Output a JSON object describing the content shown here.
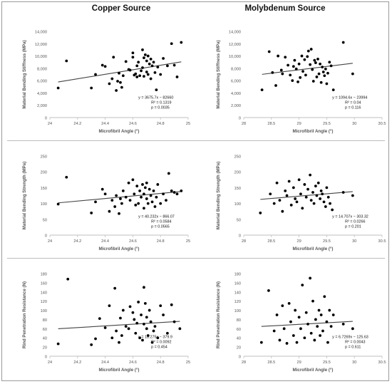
{
  "headers": {
    "left": "Copper Source",
    "right": "Molybdenum Source"
  },
  "colors": {
    "points": "#000000",
    "trendline": "#444444",
    "axis": "#bfbfbf",
    "text": "#555555",
    "title": "#111111"
  },
  "chart_data": [
    {
      "type": "scatter",
      "xlabel": "Microfibril Angle (°)",
      "ylabel": "Material Bending Stiffness (MPa)",
      "xlim": [
        24,
        25
      ],
      "ylim": [
        0,
        14000
      ],
      "xticks": [
        24,
        24.2,
        24.4,
        24.6,
        24.8,
        25
      ],
      "xtick_labels": [
        "24",
        "24.2",
        "24.4",
        "24.6",
        "24.8",
        "25"
      ],
      "yticks": [
        0,
        2000,
        4000,
        6000,
        8000,
        10000,
        12000,
        14000
      ],
      "ytick_labels": [
        "0",
        "2,000",
        "4,000",
        "6,000",
        "8,000",
        "10,000",
        "12,000",
        "14,000"
      ],
      "trendline": {
        "slope": 3675.7,
        "intercept": -82660
      },
      "annotation": [
        "y = 3675.7x − 82660",
        "R² = 0.1319",
        "p = 0.0035"
      ],
      "x": [
        24.06,
        24.12,
        24.3,
        24.33,
        24.38,
        24.4,
        24.43,
        24.45,
        24.46,
        24.48,
        24.49,
        24.5,
        24.51,
        24.52,
        24.53,
        24.55,
        24.57,
        24.58,
        24.6,
        24.6,
        24.61,
        24.62,
        24.63,
        24.63,
        24.64,
        24.65,
        24.66,
        24.67,
        24.67,
        24.68,
        24.68,
        24.69,
        24.7,
        24.7,
        24.71,
        24.71,
        24.72,
        24.73,
        24.73,
        24.74,
        24.75,
        24.76,
        24.77,
        24.78,
        24.8,
        24.82,
        24.85,
        24.88,
        24.9,
        24.92,
        24.95
      ],
      "y": [
        4800,
        9200,
        4800,
        7000,
        8500,
        8300,
        5500,
        6300,
        9800,
        4400,
        5900,
        7200,
        5700,
        4900,
        6800,
        9100,
        7800,
        7700,
        10500,
        9800,
        6900,
        7100,
        6600,
        8400,
        9000,
        6800,
        7600,
        11000,
        8100,
        9700,
        6700,
        10200,
        9200,
        7400,
        10000,
        7000,
        8700,
        9500,
        6300,
        8400,
        9000,
        7300,
        4500,
        8200,
        7000,
        9600,
        8400,
        12000,
        8500,
        6600,
        12200
      ]
    },
    {
      "type": "scatter",
      "xlabel": "Microfibril Angle (°)",
      "ylabel": "Material Bending Stiffness (MPa)",
      "xlim": [
        28,
        30.5
      ],
      "ylim": [
        0,
        14000
      ],
      "xticks": [
        28,
        28.5,
        29,
        29.5,
        30,
        30.5
      ],
      "xtick_labels": [
        "28",
        "28.5",
        "29",
        "29.5",
        "30",
        "30.5"
      ],
      "yticks": [
        0,
        2000,
        4000,
        6000,
        8000,
        10000,
        12000,
        14000
      ],
      "ytick_labels": [
        "0",
        "2,000",
        "4,000",
        "6,000",
        "8,000",
        "10,000",
        "12,000",
        "14,000"
      ],
      "trendline": {
        "slope": 1094.6,
        "intercept": -23994
      },
      "annotation": [
        "y = 1094.6x − 23994",
        "R² = 0.04",
        "p = 0.116"
      ],
      "x": [
        28.33,
        28.46,
        28.52,
        28.58,
        28.62,
        28.68,
        28.7,
        28.75,
        28.8,
        28.84,
        28.88,
        28.9,
        28.92,
        28.95,
        28.98,
        29.0,
        29.02,
        29.05,
        29.07,
        29.1,
        29.12,
        29.15,
        29.17,
        29.2,
        29.22,
        29.24,
        29.26,
        29.28,
        29.3,
        29.32,
        29.34,
        29.36,
        29.38,
        29.4,
        29.42,
        29.44,
        29.46,
        29.48,
        29.5,
        29.52,
        29.55,
        29.58,
        29.62,
        29.8,
        29.97
      ],
      "y": [
        4500,
        10700,
        7300,
        5200,
        10000,
        7700,
        7100,
        9800,
        8500,
        6900,
        6000,
        8300,
        9300,
        7900,
        5800,
        8700,
        6500,
        10000,
        7500,
        9400,
        6900,
        9900,
        10800,
        8600,
        11100,
        7800,
        5900,
        9300,
        8900,
        6600,
        9500,
        7100,
        8700,
        5700,
        8200,
        7400,
        6800,
        7900,
        5500,
        7200,
        9000,
        8400,
        4500,
        12200,
        7100
      ]
    },
    {
      "type": "scatter",
      "xlabel": "Microfibril Angle (°)",
      "ylabel": "Material Bending Strength (MPa)",
      "xlim": [
        24,
        25
      ],
      "ylim": [
        0,
        250
      ],
      "xticks": [
        24,
        24.2,
        24.4,
        24.6,
        24.8,
        25
      ],
      "xtick_labels": [
        "24",
        "24.2",
        "24.4",
        "24.6",
        "24.8",
        "25"
      ],
      "yticks": [
        0,
        50,
        100,
        150,
        200,
        250
      ],
      "ytick_labels": [
        "0",
        "50",
        "100",
        "150",
        "200",
        "250"
      ],
      "trendline": {
        "slope": 40.232,
        "intercept": -866.07
      },
      "annotation": [
        "y = 40.232x − 866.07",
        "R² = 0.0584",
        "p = 0.0565"
      ],
      "x": [
        24.06,
        24.12,
        24.3,
        24.33,
        24.38,
        24.4,
        24.43,
        24.45,
        24.47,
        24.48,
        24.5,
        24.51,
        24.52,
        24.53,
        24.55,
        24.57,
        24.58,
        24.6,
        24.61,
        24.62,
        24.63,
        24.64,
        24.65,
        24.66,
        24.67,
        24.68,
        24.68,
        24.69,
        24.7,
        24.7,
        24.71,
        24.72,
        24.73,
        24.74,
        24.75,
        24.76,
        24.77,
        24.78,
        24.8,
        24.82,
        24.84,
        24.86,
        24.88,
        24.9,
        24.92,
        24.95
      ],
      "y": [
        98,
        183,
        70,
        105,
        145,
        130,
        75,
        110,
        90,
        125,
        68,
        115,
        100,
        140,
        120,
        165,
        110,
        175,
        130,
        95,
        155,
        100,
        140,
        120,
        160,
        85,
        130,
        150,
        115,
        165,
        100,
        145,
        125,
        105,
        140,
        90,
        120,
        160,
        100,
        130,
        110,
        195,
        140,
        135,
        130,
        140
      ]
    },
    {
      "type": "scatter",
      "xlabel": "Microfibril Angle (°)",
      "ylabel": "Material Bending Strength (MPa)",
      "xlim": [
        28,
        30.5
      ],
      "ylim": [
        0,
        250
      ],
      "xticks": [
        28,
        28.5,
        29,
        29.5,
        30,
        30.5
      ],
      "xtick_labels": [
        "28",
        "28.5",
        "29",
        "29.5",
        "30",
        "30.5"
      ],
      "yticks": [
        0,
        50,
        100,
        150,
        200,
        250
      ],
      "ytick_labels": [
        "0",
        "50",
        "100",
        "150",
        "200",
        "250"
      ],
      "trendline": {
        "slope": 14.707,
        "intercept": -303.32
      },
      "annotation": [
        "y = 14.707x − 303.32",
        "R² = 0.0266",
        "p = 0.201"
      ],
      "x": [
        28.3,
        28.48,
        28.55,
        28.6,
        28.65,
        28.7,
        28.75,
        28.78,
        28.82,
        28.86,
        28.9,
        28.93,
        28.96,
        29.0,
        29.03,
        29.06,
        29.1,
        29.13,
        29.16,
        29.2,
        29.22,
        29.25,
        29.27,
        29.3,
        29.32,
        29.35,
        29.38,
        29.4,
        29.42,
        29.45,
        29.48,
        29.5,
        29.53,
        29.56,
        29.6,
        29.8,
        29.97
      ],
      "y": [
        70,
        130,
        100,
        165,
        110,
        75,
        140,
        125,
        170,
        95,
        150,
        115,
        105,
        175,
        130,
        85,
        160,
        120,
        145,
        190,
        110,
        135,
        100,
        155,
        125,
        165,
        115,
        140,
        130,
        105,
        90,
        150,
        120,
        100,
        80,
        135,
        125
      ]
    },
    {
      "type": "scatter",
      "xlabel": "Microfibril Angle (°)",
      "ylabel": "Rind Penetration Resistance (N)",
      "xlim": [
        24,
        25
      ],
      "ylim": [
        0,
        180
      ],
      "xticks": [
        24,
        24.2,
        24.4,
        24.6,
        24.8,
        25
      ],
      "xtick_labels": [
        "24",
        "24.2",
        "24.4",
        "24.6",
        "24.8",
        "25"
      ],
      "yticks": [
        0,
        20,
        40,
        60,
        80,
        100,
        120,
        140,
        160,
        180
      ],
      "ytick_labels": [
        "0",
        "20",
        "40",
        "60",
        "80",
        "100",
        "120",
        "140",
        "160",
        "180"
      ],
      "trendline": {
        "slope": 18.275,
        "intercept": -379.9
      },
      "annotation": [
        "y = 18.275x − 379.9",
        "R² = 0.0092",
        "p = 0.454"
      ],
      "x": [
        24.06,
        24.13,
        24.3,
        24.33,
        24.36,
        24.4,
        24.43,
        24.45,
        24.47,
        24.48,
        24.5,
        24.51,
        24.52,
        24.53,
        24.55,
        24.57,
        24.58,
        24.6,
        24.61,
        24.62,
        24.63,
        24.64,
        24.65,
        24.66,
        24.67,
        24.68,
        24.68,
        24.69,
        24.7,
        24.7,
        24.71,
        24.72,
        24.73,
        24.74,
        24.75,
        24.76,
        24.78,
        24.8,
        24.82,
        24.85,
        24.88,
        24.9,
        24.94
      ],
      "y": [
        27,
        168,
        25,
        38,
        82,
        62,
        110,
        40,
        148,
        55,
        30,
        83,
        45,
        100,
        65,
        60,
        108,
        95,
        80,
        50,
        72,
        118,
        40,
        90,
        35,
        150,
        70,
        115,
        60,
        85,
        45,
        100,
        75,
        30,
        55,
        65,
        40,
        110,
        90,
        50,
        112,
        75,
        60
      ]
    },
    {
      "type": "scatter",
      "xlabel": "Microfibril Angle (°)",
      "ylabel": "Rind Penetration Resistance (N)",
      "xlim": [
        28,
        30.5
      ],
      "ylim": [
        0,
        180
      ],
      "xticks": [
        28,
        28.5,
        29,
        29.5,
        30,
        30.5
      ],
      "xtick_labels": [
        "28",
        "28.5",
        "29",
        "29.5",
        "30",
        "30.5"
      ],
      "yticks": [
        0,
        20,
        40,
        60,
        80,
        100,
        120,
        140,
        160,
        180
      ],
      "ytick_labels": [
        "0",
        "20",
        "40",
        "60",
        "80",
        "100",
        "120",
        "140",
        "160",
        "180"
      ],
      "trendline": {
        "slope": 6.7269,
        "intercept": -125.63
      },
      "annotation": [
        "y = 6.7269x − 125.63",
        "R² = 0.0043",
        "p = 0.611"
      ],
      "x": [
        28.32,
        28.45,
        28.55,
        28.6,
        28.65,
        28.7,
        28.73,
        28.78,
        28.82,
        28.85,
        28.9,
        28.93,
        28.96,
        29.0,
        29.03,
        29.06,
        29.1,
        29.13,
        29.16,
        29.2,
        29.22,
        29.25,
        29.28,
        29.3,
        29.33,
        29.36,
        29.38,
        29.4,
        29.43,
        29.46,
        29.5,
        29.52,
        29.55,
        29.58,
        29.62,
        29.8,
        29.97
      ],
      "y": [
        30,
        143,
        55,
        90,
        35,
        110,
        60,
        28,
        115,
        75,
        45,
        100,
        30,
        85,
        60,
        155,
        40,
        95,
        70,
        170,
        50,
        120,
        35,
        80,
        65,
        100,
        45,
        90,
        55,
        130,
        75,
        30,
        100,
        65,
        90,
        70,
        60
      ]
    }
  ]
}
